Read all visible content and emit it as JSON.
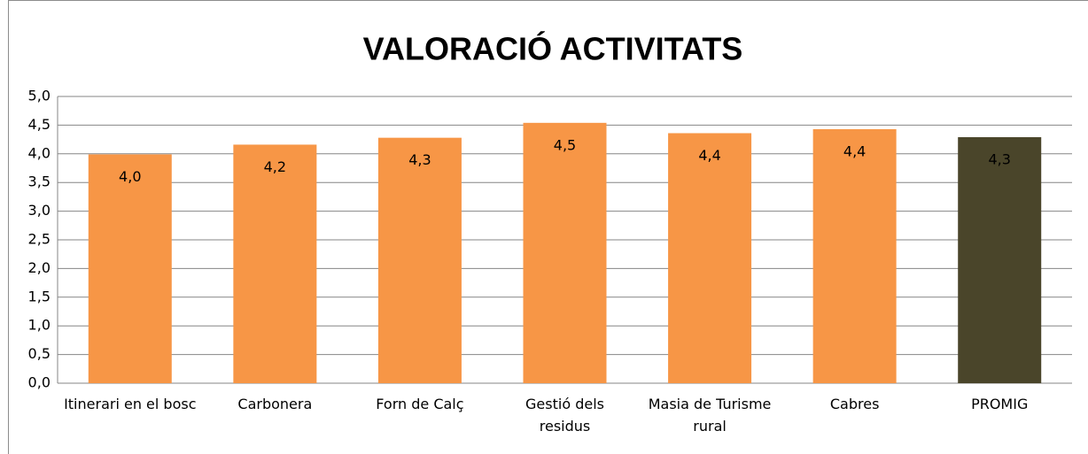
{
  "chart_data": {
    "type": "bar",
    "title": "VALORACIÓ ACTIVITATS",
    "categories": [
      "Itinerari en el bosc",
      "Carbonera",
      "Forn de Calç",
      "Gestió dels residus",
      "Masia de Turisme rural",
      "Cabres",
      "PROMIG"
    ],
    "values": [
      3.99,
      4.16,
      4.28,
      4.54,
      4.36,
      4.43,
      4.29
    ],
    "value_labels": [
      "4,0",
      "4,2",
      "4,3",
      "4,5",
      "4,4",
      "4,4",
      "4,3"
    ],
    "colors": [
      "#f79646",
      "#f79646",
      "#f79646",
      "#f79646",
      "#f79646",
      "#f79646",
      "#4a452a"
    ],
    "ylim": [
      0,
      5
    ],
    "yticks": [
      {
        "value": 0,
        "label": "0,0"
      },
      {
        "value": 0.5,
        "label": "0,5"
      },
      {
        "value": 1,
        "label": "1,0"
      },
      {
        "value": 1.5,
        "label": "1,5"
      },
      {
        "value": 2,
        "label": "2,0"
      },
      {
        "value": 2.5,
        "label": "2,5"
      },
      {
        "value": 3,
        "label": "3,0"
      },
      {
        "value": 3.5,
        "label": "3,5"
      },
      {
        "value": 4,
        "label": "4,0"
      },
      {
        "value": 4.5,
        "label": "4,5"
      },
      {
        "value": 5,
        "label": "5,0"
      }
    ],
    "grid": true
  }
}
